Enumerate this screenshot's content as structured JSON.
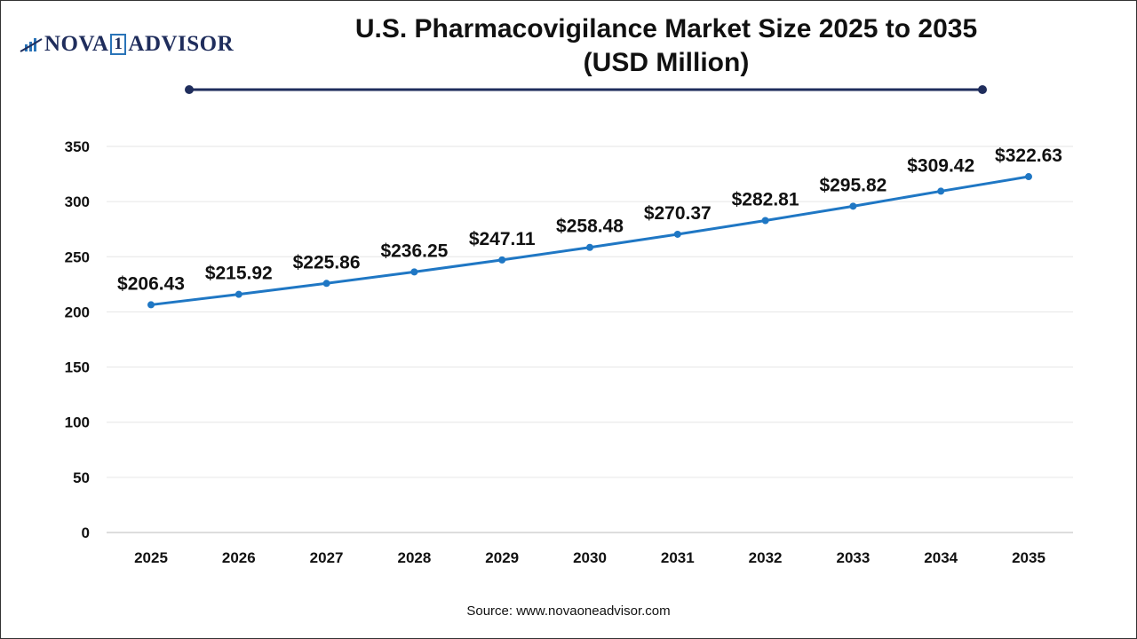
{
  "logo": {
    "text_left": "NOVA",
    "text_box": "1",
    "text_right": "ADVISOR"
  },
  "title": {
    "line1": "U.S. Pharmacovigilance Market Size 2025 to 2035",
    "line2": "(USD Million)"
  },
  "source": "Source: www.novaoneadvisor.com",
  "colors": {
    "line": "#1f77c4",
    "title_rule": "#1f2d5c",
    "grid": "#e6e6e6"
  },
  "chart_data": {
    "type": "line",
    "title": "U.S. Pharmacovigilance Market Size 2025 to 2035 (USD Million)",
    "categories": [
      "2025",
      "2026",
      "2027",
      "2028",
      "2029",
      "2030",
      "2031",
      "2032",
      "2033",
      "2034",
      "2035"
    ],
    "values": [
      206.43,
      215.92,
      225.86,
      236.25,
      247.11,
      258.48,
      270.37,
      282.81,
      295.82,
      309.42,
      322.63
    ],
    "data_labels": [
      "$206.43",
      "$215.92",
      "$225.86",
      "$236.25",
      "$247.11",
      "$258.48",
      "$270.37",
      "$282.81",
      "$295.82",
      "$309.42",
      "$322.63"
    ],
    "yticks": [
      "0",
      "50",
      "100",
      "150",
      "200",
      "250",
      "300",
      "350"
    ],
    "ylim": [
      0,
      350
    ],
    "grid": true,
    "xlabel": "",
    "ylabel": ""
  }
}
